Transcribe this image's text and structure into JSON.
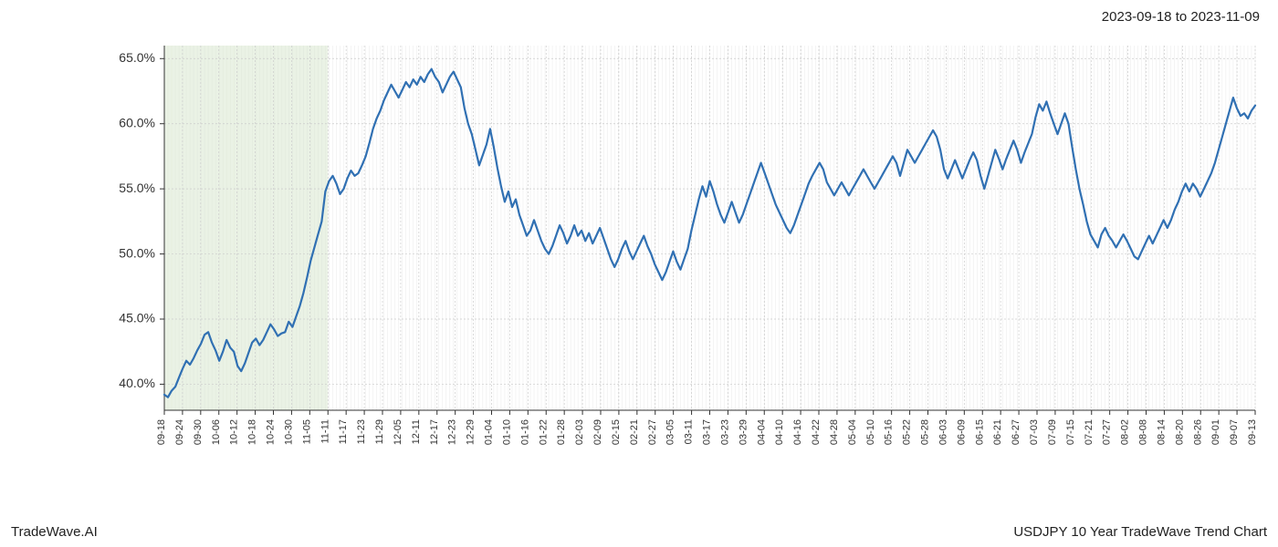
{
  "header": {
    "date_range": "2023-09-18 to 2023-11-09"
  },
  "footer": {
    "left": "TradeWave.AI",
    "right": "USDJPY 10 Year TradeWave Trend Chart"
  },
  "chart": {
    "type": "line",
    "background_color": "#ffffff",
    "line_color": "#3070b3",
    "line_width": 2.2,
    "shaded_region": {
      "fill": "#d8e8d0",
      "opacity": 0.55,
      "x_start_index": 0,
      "x_end_index": 9
    },
    "grid": {
      "major_color": "#cccccc",
      "minor_color": "#e8e8e8",
      "major_width": 0.7,
      "minor_width": 0.5
    },
    "x_axis": {
      "labels": [
        "09-18",
        "09-24",
        "09-30",
        "10-06",
        "10-12",
        "10-18",
        "10-24",
        "10-30",
        "11-05",
        "11-11",
        "11-17",
        "11-23",
        "11-29",
        "12-05",
        "12-11",
        "12-17",
        "12-23",
        "12-29",
        "01-04",
        "01-10",
        "01-16",
        "01-22",
        "01-28",
        "02-03",
        "02-09",
        "02-15",
        "02-21",
        "02-27",
        "03-05",
        "03-11",
        "03-17",
        "03-23",
        "03-29",
        "04-04",
        "04-10",
        "04-16",
        "04-22",
        "04-28",
        "05-04",
        "05-10",
        "05-16",
        "05-22",
        "05-28",
        "06-03",
        "06-09",
        "06-15",
        "06-21",
        "06-27",
        "07-03",
        "07-09",
        "07-15",
        "07-21",
        "07-27",
        "08-02",
        "08-08",
        "08-14",
        "08-20",
        "08-26",
        "09-01",
        "09-07",
        "09-13"
      ],
      "label_fontsize": 11,
      "label_rotation": 90
    },
    "y_axis": {
      "min": 38,
      "max": 66,
      "ticks": [
        40,
        45,
        50,
        55,
        60,
        65
      ],
      "tick_labels": [
        "40.0%",
        "45.0%",
        "50.0%",
        "55.0%",
        "60.0%",
        "65.0%"
      ],
      "label_fontsize": 14
    },
    "data": {
      "values": [
        39.2,
        39.0,
        39.5,
        39.8,
        40.5,
        41.2,
        41.8,
        41.5,
        42.0,
        42.6,
        43.1,
        43.8,
        44.0,
        43.2,
        42.6,
        41.8,
        42.5,
        43.4,
        42.8,
        42.5,
        41.4,
        41.0,
        41.6,
        42.4,
        43.2,
        43.5,
        43.0,
        43.4,
        44.0,
        44.6,
        44.2,
        43.7,
        43.9,
        44.0,
        44.8,
        44.4,
        45.2,
        46.0,
        47.0,
        48.2,
        49.5,
        50.5,
        51.5,
        52.5,
        54.8,
        55.6,
        56.0,
        55.4,
        54.6,
        55.0,
        55.8,
        56.4,
        56.0,
        56.2,
        56.8,
        57.5,
        58.5,
        59.6,
        60.4,
        61.0,
        61.8,
        62.4,
        63.0,
        62.5,
        62.0,
        62.6,
        63.2,
        62.8,
        63.4,
        63.0,
        63.6,
        63.2,
        63.8,
        64.2,
        63.6,
        63.2,
        62.4,
        63.0,
        63.6,
        64.0,
        63.4,
        62.8,
        61.2,
        60.0,
        59.2,
        58.0,
        56.8,
        57.6,
        58.4,
        59.6,
        58.2,
        56.6,
        55.2,
        54.0,
        54.8,
        53.6,
        54.2,
        53.0,
        52.2,
        51.4,
        51.8,
        52.6,
        51.8,
        51.0,
        50.4,
        50.0,
        50.6,
        51.4,
        52.2,
        51.6,
        50.8,
        51.4,
        52.2,
        51.4,
        51.8,
        51.0,
        51.6,
        50.8,
        51.4,
        52.0,
        51.2,
        50.4,
        49.6,
        49.0,
        49.6,
        50.4,
        51.0,
        50.2,
        49.6,
        50.2,
        50.8,
        51.4,
        50.6,
        50.0,
        49.2,
        48.6,
        48.0,
        48.6,
        49.4,
        50.2,
        49.4,
        48.8,
        49.6,
        50.4,
        51.8,
        53.0,
        54.2,
        55.2,
        54.4,
        55.6,
        54.8,
        53.8,
        53.0,
        52.4,
        53.2,
        54.0,
        53.2,
        52.4,
        53.0,
        53.8,
        54.6,
        55.4,
        56.2,
        57.0,
        56.2,
        55.4,
        54.6,
        53.8,
        53.2,
        52.6,
        52.0,
        51.6,
        52.2,
        53.0,
        53.8,
        54.6,
        55.4,
        56.0,
        56.5,
        57.0,
        56.5,
        55.5,
        55.0,
        54.5,
        55.0,
        55.5,
        55.0,
        54.5,
        55.0,
        55.5,
        56.0,
        56.5,
        56.0,
        55.5,
        55.0,
        55.5,
        56.0,
        56.5,
        57.0,
        57.5,
        57.0,
        56.0,
        57.0,
        58.0,
        57.5,
        57.0,
        57.5,
        58.0,
        58.5,
        59.0,
        59.5,
        59.0,
        58.0,
        56.5,
        55.8,
        56.5,
        57.2,
        56.5,
        55.8,
        56.5,
        57.2,
        57.8,
        57.2,
        56.0,
        55.0,
        56.0,
        57.0,
        58.0,
        57.3,
        56.5,
        57.3,
        58.0,
        58.7,
        58.0,
        57.0,
        57.8,
        58.5,
        59.2,
        60.5,
        61.5,
        61.0,
        61.7,
        60.8,
        60.0,
        59.2,
        60.0,
        60.8,
        60.0,
        58.2,
        56.5,
        55.0,
        53.8,
        52.5,
        51.5,
        51.0,
        50.5,
        51.5,
        52.0,
        51.4,
        51.0,
        50.5,
        51.0,
        51.5,
        51.0,
        50.4,
        49.8,
        49.6,
        50.2,
        50.8,
        51.4,
        50.8,
        51.4,
        52.0,
        52.6,
        52.0,
        52.6,
        53.4,
        54.0,
        54.8,
        55.4,
        54.8,
        55.4,
        55.0,
        54.4,
        55.0,
        55.6,
        56.2,
        57.0,
        58.0,
        59.0,
        60.0,
        61.0,
        62.0,
        61.2,
        60.6,
        60.8,
        60.4,
        61.0,
        61.4
      ]
    }
  }
}
